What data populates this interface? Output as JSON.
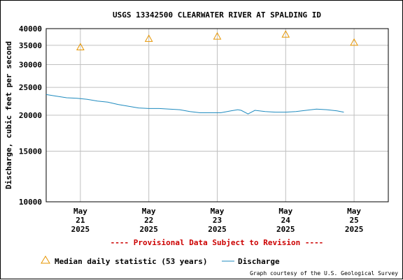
{
  "chart_data": {
    "type": "line",
    "title": "USGS 13342500 CLEARWATER RIVER AT SPALDING ID",
    "ylabel": "Discharge, cubic feet per second",
    "xlabel": "",
    "y_scale": "log",
    "ylim": [
      10000,
      40000
    ],
    "y_ticks": [
      "40000",
      "35000",
      "30000",
      "25000",
      "20000",
      "15000",
      "10000"
    ],
    "y_tick_values": [
      40000,
      35000,
      30000,
      25000,
      20000,
      15000,
      10000
    ],
    "xlim": [
      0.5,
      5.5
    ],
    "x_ticks": [
      {
        "x": 1,
        "month": "May",
        "day": "21",
        "year": "2025"
      },
      {
        "x": 2,
        "month": "May",
        "day": "22",
        "year": "2025"
      },
      {
        "x": 3,
        "month": "May",
        "day": "23",
        "year": "2025"
      },
      {
        "x": 4,
        "month": "May",
        "day": "24",
        "year": "2025"
      },
      {
        "x": 5,
        "month": "May",
        "day": "25",
        "year": "2025"
      }
    ],
    "grid": true,
    "series": [
      {
        "name": "Median daily statistic (53 years)",
        "kind": "marker",
        "marker": "triangle",
        "color": "#e69500",
        "x": [
          1,
          2,
          3,
          4,
          5
        ],
        "y": [
          34500,
          36900,
          37600,
          38200,
          35800
        ]
      },
      {
        "name": "Discharge",
        "kind": "line",
        "color": "#1f8bbf",
        "x": [
          0.5,
          0.65,
          0.8,
          0.95,
          1.1,
          1.25,
          1.4,
          1.55,
          1.7,
          1.85,
          2.0,
          2.15,
          2.3,
          2.45,
          2.6,
          2.75,
          2.9,
          3.05,
          3.2,
          3.3,
          3.35,
          3.45,
          3.55,
          3.7,
          3.85,
          4.0,
          4.15,
          4.3,
          4.45,
          4.6,
          4.75,
          4.85
        ],
        "y": [
          23600,
          23300,
          23000,
          22900,
          22700,
          22400,
          22200,
          21800,
          21500,
          21200,
          21100,
          21100,
          21000,
          20900,
          20600,
          20400,
          20400,
          20400,
          20700,
          20900,
          20800,
          20200,
          20800,
          20600,
          20500,
          20500,
          20600,
          20800,
          21000,
          20900,
          20700,
          20500
        ]
      }
    ],
    "legend_position": "bottom"
  },
  "notice": "---- Provisional Data Subject to Revision ----",
  "legend": {
    "median_label": "Median daily statistic (53 years)",
    "discharge_label": "Discharge"
  },
  "courtesy": "Graph courtesy of the U.S. Geological Survey",
  "colors": {
    "median": "#e69500",
    "discharge": "#1f8bbf",
    "notice": "#cc0000",
    "grid": "#c0c0c0"
  }
}
